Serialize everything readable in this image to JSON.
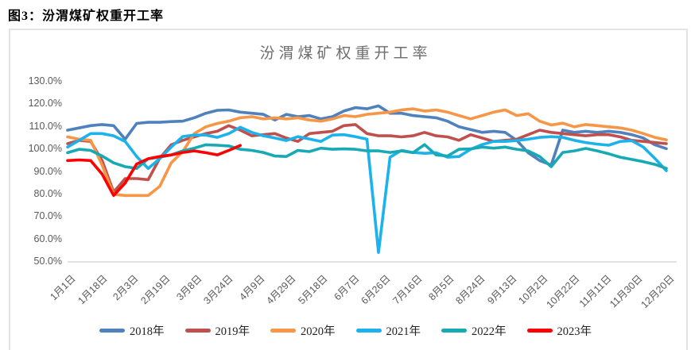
{
  "header": {
    "caption": "图3：汾渭煤矿权重开工率"
  },
  "chart_data": {
    "type": "line",
    "title": "汾渭煤矿权重开工率",
    "ylim": [
      50,
      130
    ],
    "grid": false,
    "legend_position": "bottom",
    "axis_color": "#D9D9D9",
    "tick_label_color": "#595959",
    "points_per_series": 53,
    "yticks": [
      {
        "label": "130.0%",
        "value": 130
      },
      {
        "label": "120.0%",
        "value": 120
      },
      {
        "label": "110.0%",
        "value": 110
      },
      {
        "label": "100.0%",
        "value": 100
      },
      {
        "label": "90.0%",
        "value": 90
      },
      {
        "label": "80.0%",
        "value": 80
      },
      {
        "label": "70.0%",
        "value": 70
      },
      {
        "label": "60.0%",
        "value": 60
      },
      {
        "label": "50.0%",
        "value": 50
      }
    ],
    "x_labels": [
      "1月1日",
      "1月18日",
      "2月3日",
      "2月19日",
      "3月8日",
      "3月24日",
      "4月9日",
      "4月29日",
      "5月18日",
      "6月7日",
      "6月26日",
      "7月16日",
      "8月5日",
      "8月24日",
      "9月13日",
      "10月2日",
      "10月22日",
      "11月11日",
      "11月30日",
      "12月20日"
    ],
    "series": [
      {
        "name": "2018年",
        "color": "#4F81BD",
        "values": [
          108.5,
          109.5,
          110.5,
          111,
          110.5,
          104.5,
          111.5,
          112,
          112,
          112.3,
          112.5,
          114,
          116,
          117.3,
          117.5,
          116.5,
          116,
          115.5,
          113,
          115.5,
          114.5,
          115,
          113.5,
          114.5,
          117,
          118.5,
          118,
          119.3,
          116,
          116,
          115,
          114.5,
          114,
          112.5,
          110,
          108.8,
          107.5,
          108,
          107.5,
          104,
          98.5,
          95,
          93,
          108.5,
          107.5,
          108,
          107.5,
          108,
          107.5,
          106.5,
          105,
          102,
          100.3
        ]
      },
      {
        "name": "2019年",
        "color": "#C0504D",
        "values": [
          102.5,
          104,
          103.5,
          95,
          81,
          87,
          87,
          86.5,
          96,
          102,
          104,
          105.5,
          107,
          108,
          110.5,
          108.5,
          106,
          106.5,
          107,
          105,
          103.5,
          107,
          107.5,
          108,
          110.5,
          111,
          107,
          106,
          106,
          105.5,
          106,
          107.5,
          106,
          105.5,
          104,
          106.5,
          105,
          103.5,
          104,
          104.5,
          106.5,
          108.5,
          107.5,
          107,
          106.5,
          106,
          106.5,
          106.5,
          105.5,
          104,
          103.5,
          103,
          102.5
        ]
      },
      {
        "name": "2020年",
        "color": "#F79646",
        "values": [
          105.5,
          104.5,
          104,
          93,
          80,
          79.5,
          79.5,
          79.5,
          83.5,
          94,
          99,
          107,
          110,
          111.5,
          112.5,
          114,
          114.5,
          113.5,
          114,
          113.5,
          114,
          113,
          112.5,
          113.5,
          115,
          114.5,
          115.5,
          116,
          116.5,
          117.5,
          118,
          117,
          117.5,
          116.5,
          115,
          113.5,
          115,
          116.5,
          117.5,
          115,
          115.8,
          112.5,
          110.8,
          111.6,
          110,
          111,
          110.5,
          110,
          109.5,
          108.5,
          107,
          105.3,
          104.2
        ]
      },
      {
        "name": "2021年",
        "color": "#1CB2EC",
        "values": [
          101,
          104,
          107,
          107,
          106,
          103.5,
          96.8,
          91.5,
          95.8,
          101,
          105.7,
          106.3,
          106.3,
          105.3,
          107,
          109.8,
          107.5,
          106,
          105,
          103.9,
          105.6,
          104.6,
          103.5,
          106.3,
          106.5,
          105.6,
          104.5,
          54.2,
          96.5,
          99.5,
          98.6,
          98.2,
          98.5,
          96.5,
          96.8,
          100,
          102.1,
          103.5,
          103.5,
          103.9,
          104.5,
          105.3,
          105.6,
          105.3,
          104,
          103,
          102.3,
          101.8,
          103.5,
          103.8,
          101,
          96,
          90.5
        ]
      },
      {
        "name": "2022年",
        "color": "#17A9B4",
        "values": [
          98.5,
          100,
          99.5,
          97,
          94,
          92.3,
          91.5,
          95.8,
          96.5,
          97.5,
          99.3,
          100.5,
          102,
          101.8,
          101.5,
          100,
          99.5,
          98.6,
          97,
          96.8,
          99.5,
          99,
          100.5,
          100,
          100.2,
          100,
          99.3,
          99.3,
          98.6,
          99.3,
          98.5,
          102.1,
          97.5,
          97,
          100,
          100.2,
          101,
          100.5,
          101,
          100,
          99.3,
          96.8,
          92.3,
          98.6,
          99.3,
          100.4,
          99.3,
          98,
          96.5,
          95.5,
          94.5,
          93.3,
          91.5
        ]
      },
      {
        "name": "2023年",
        "color": "#FE0000",
        "values": [
          95,
          95.3,
          95,
          89,
          79.5,
          85,
          93.5,
          95.8,
          96.8,
          97.5,
          98.6,
          99.3,
          98.5,
          97.5,
          99.5,
          101.7
        ]
      }
    ]
  }
}
